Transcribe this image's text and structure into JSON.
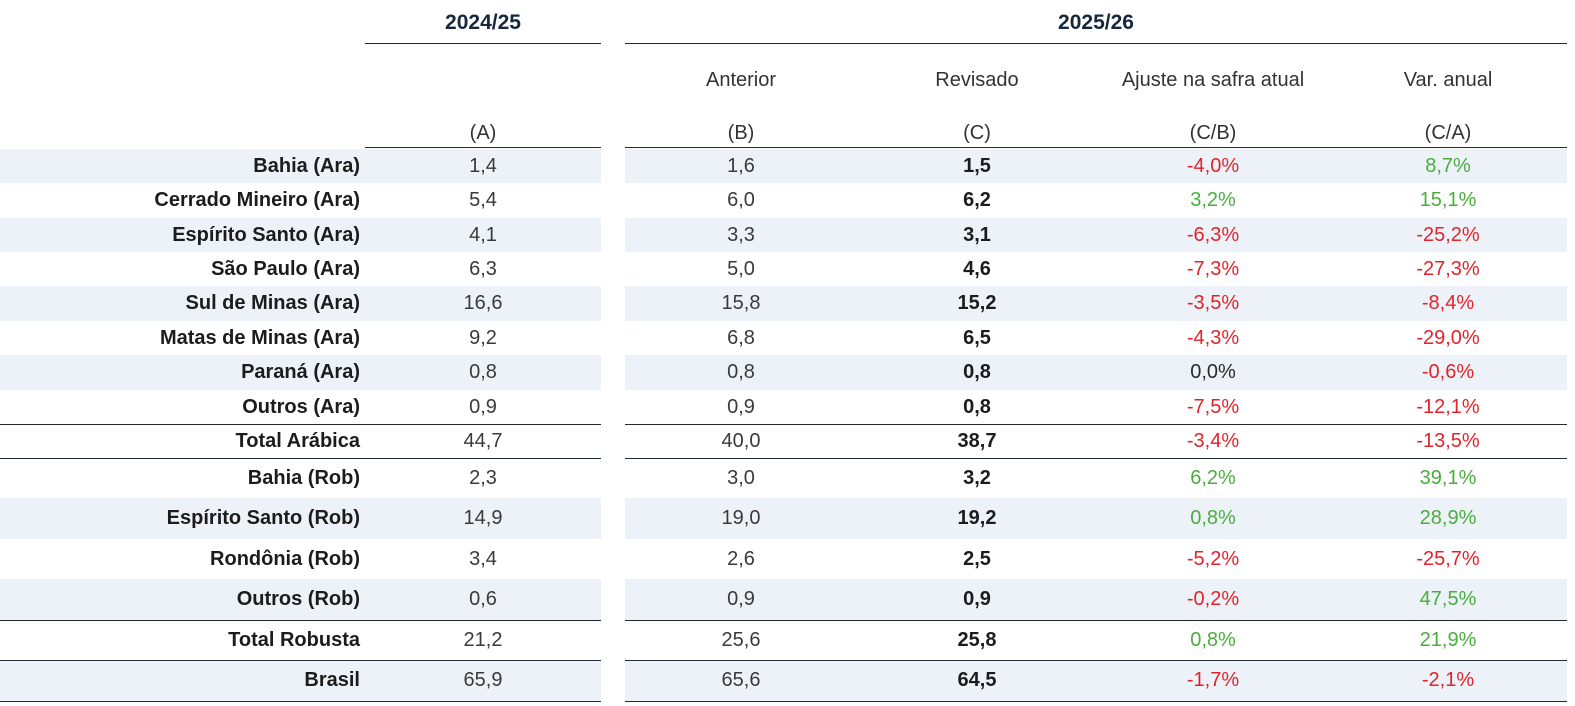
{
  "header": {
    "col_2024": "2024/25",
    "col_2025": "2025/26",
    "sub_anterior": "Anterior",
    "sub_revisado": "Revisado",
    "sub_ajuste": "Ajuste na safra atual",
    "sub_var": "Var. anual",
    "code_a": "(A)",
    "code_b": "(B)",
    "code_c": "(C)",
    "code_cb": "(C/B)",
    "code_ca": "(C/A)"
  },
  "colors": {
    "positive": "#4aad3d",
    "negative": "#e0242b",
    "stripe": "#edf2f8",
    "header": "#16283c"
  },
  "rows": [
    {
      "label": "Bahia (Ara)",
      "a": "1,4",
      "b": "1,6",
      "c": "1,5",
      "cb": "-4,0%",
      "ca": "8,7%",
      "cb_sign": "neg",
      "ca_sign": "pos"
    },
    {
      "label": "Cerrado Mineiro (Ara)",
      "a": "5,4",
      "b": "6,0",
      "c": "6,2",
      "cb": "3,2%",
      "ca": "15,1%",
      "cb_sign": "pos",
      "ca_sign": "pos"
    },
    {
      "label": "Espírito Santo (Ara)",
      "a": "4,1",
      "b": "3,3",
      "c": "3,1",
      "cb": "-6,3%",
      "ca": "-25,2%",
      "cb_sign": "neg",
      "ca_sign": "neg"
    },
    {
      "label": "São Paulo (Ara)",
      "a": "6,3",
      "b": "5,0",
      "c": "4,6",
      "cb": "-7,3%",
      "ca": "-27,3%",
      "cb_sign": "neg",
      "ca_sign": "neg"
    },
    {
      "label": "Sul de Minas (Ara)",
      "a": "16,6",
      "b": "15,8",
      "c": "15,2",
      "cb": "-3,5%",
      "ca": "-8,4%",
      "cb_sign": "neg",
      "ca_sign": "neg"
    },
    {
      "label": "Matas de Minas (Ara)",
      "a": "9,2",
      "b": "6,8",
      "c": "6,5",
      "cb": "-4,3%",
      "ca": "-29,0%",
      "cb_sign": "neg",
      "ca_sign": "neg"
    },
    {
      "label": "Paraná (Ara)",
      "a": "0,8",
      "b": "0,8",
      "c": "0,8",
      "cb": "0,0%",
      "ca": "-0,6%",
      "cb_sign": "zero",
      "ca_sign": "neg"
    },
    {
      "label": "Outros (Ara)",
      "a": "0,9",
      "b": "0,9",
      "c": "0,8",
      "cb": "-7,5%",
      "ca": "-12,1%",
      "cb_sign": "neg",
      "ca_sign": "neg"
    },
    {
      "label": "Total Arábica",
      "a": "44,7",
      "b": "40,0",
      "c": "38,7",
      "cb": "-3,4%",
      "ca": "-13,5%",
      "cb_sign": "neg",
      "ca_sign": "neg"
    },
    {
      "label": "Bahia (Rob)",
      "a": "2,3",
      "b": "3,0",
      "c": "3,2",
      "cb": "6,2%",
      "ca": "39,1%",
      "cb_sign": "pos",
      "ca_sign": "pos"
    },
    {
      "label": "Espírito Santo (Rob)",
      "a": "14,9",
      "b": "19,0",
      "c": "19,2",
      "cb": "0,8%",
      "ca": "28,9%",
      "cb_sign": "pos",
      "ca_sign": "pos"
    },
    {
      "label": "Rondônia (Rob)",
      "a": "3,4",
      "b": "2,6",
      "c": "2,5",
      "cb": "-5,2%",
      "ca": "-25,7%",
      "cb_sign": "neg",
      "ca_sign": "neg"
    },
    {
      "label": "Outros (Rob)",
      "a": "0,6",
      "b": "0,9",
      "c": "0,9",
      "cb": "-0,2%",
      "ca": "47,5%",
      "cb_sign": "neg",
      "ca_sign": "pos"
    },
    {
      "label": "Total Robusta",
      "a": "21,2",
      "b": "25,6",
      "c": "25,8",
      "cb": "0,8%",
      "ca": "21,9%",
      "cb_sign": "pos",
      "ca_sign": "pos"
    },
    {
      "label": "Brasil",
      "a": "65,9",
      "b": "65,6",
      "c": "64,5",
      "cb": "-1,7%",
      "ca": "-2,1%",
      "cb_sign": "neg",
      "ca_sign": "neg"
    }
  ]
}
